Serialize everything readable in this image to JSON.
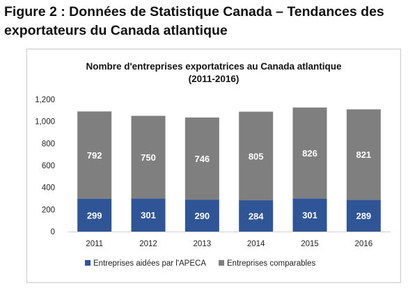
{
  "figure_title": "Figure 2 : Données de Statistique Canada – Tendances des exportateurs du Canada atlantique",
  "chart_data": {
    "type": "bar",
    "stacked": true,
    "title_line1": "Nombre d'entreprises exportatrices au Canada atlantique",
    "title_line2": "(2011-2016)",
    "categories": [
      "2011",
      "2012",
      "2013",
      "2014",
      "2015",
      "2016"
    ],
    "series": [
      {
        "name": "Entreprises aidées par l'APECA",
        "color": "#2f5597",
        "values": [
          299,
          301,
          290,
          284,
          301,
          289
        ]
      },
      {
        "name": "Entreprises comparables",
        "color": "#7f7f7f",
        "values": [
          792,
          750,
          746,
          805,
          826,
          821
        ]
      }
    ],
    "ylim": [
      0,
      1200
    ],
    "y_ticks": [
      "0",
      "200",
      "400",
      "600",
      "800",
      "1,000",
      "1,200"
    ],
    "grid": false,
    "legend_position": "bottom"
  }
}
